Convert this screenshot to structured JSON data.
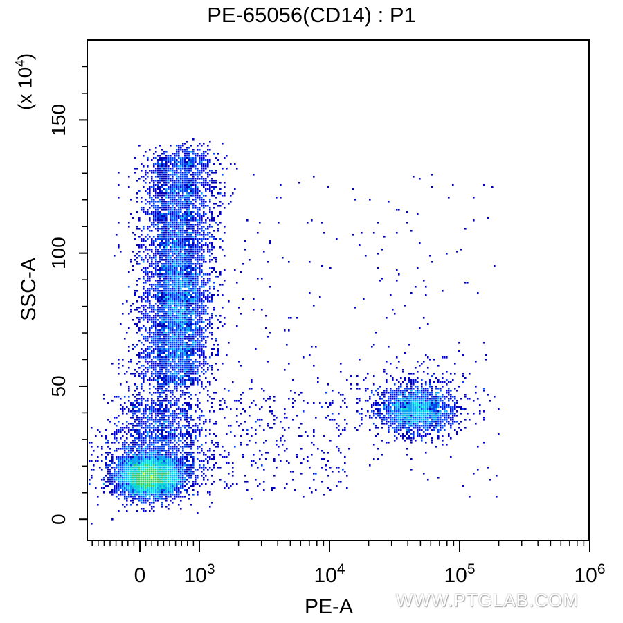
{
  "title": "PE-65056(CD14) : P1",
  "watermark": "WWW.PTGLAB.COM",
  "chart_data": {
    "type": "scatter",
    "subtype": "flow-cytometry density dot plot",
    "title": "PE-65056(CD14) : P1",
    "xlabel": "PE-A",
    "ylabel": "SSC-A",
    "y_multiplier_label": "(x 10",
    "y_multiplier_exp": "4",
    "x_scale": "biexponential (linear near 0, log above)",
    "xlim": [
      -500,
      1000000
    ],
    "ylim": [
      -8,
      180
    ],
    "x_ticks": [
      {
        "value": 0,
        "label": "0",
        "exp": ""
      },
      {
        "value": 1000,
        "label": "10",
        "exp": "3"
      },
      {
        "value": 10000,
        "label": "10",
        "exp": "4"
      },
      {
        "value": 100000,
        "label": "10",
        "exp": "5"
      },
      {
        "value": 1000000,
        "label": "10",
        "exp": "6"
      }
    ],
    "y_ticks": [
      0,
      50,
      100,
      150
    ],
    "populations": [
      {
        "name": "",
        "x_center": 150,
        "y_center": 16,
        "description": "dense core, red-yellow"
      },
      {
        "name": "",
        "x_center": 650,
        "y_center": 85,
        "description": "vertical elongated cluster, blue-cyan"
      },
      {
        "name": "",
        "x_center": 50000,
        "y_center": 41,
        "description": "CD14+ cluster, blue"
      }
    ],
    "grid": false,
    "legend": "none",
    "colormap": [
      "#0000cc",
      "#0044ff",
      "#00aaff",
      "#00dddd",
      "#33cc66",
      "#ccee00",
      "#ffdd00",
      "#ff7700",
      "#ee0000"
    ]
  }
}
